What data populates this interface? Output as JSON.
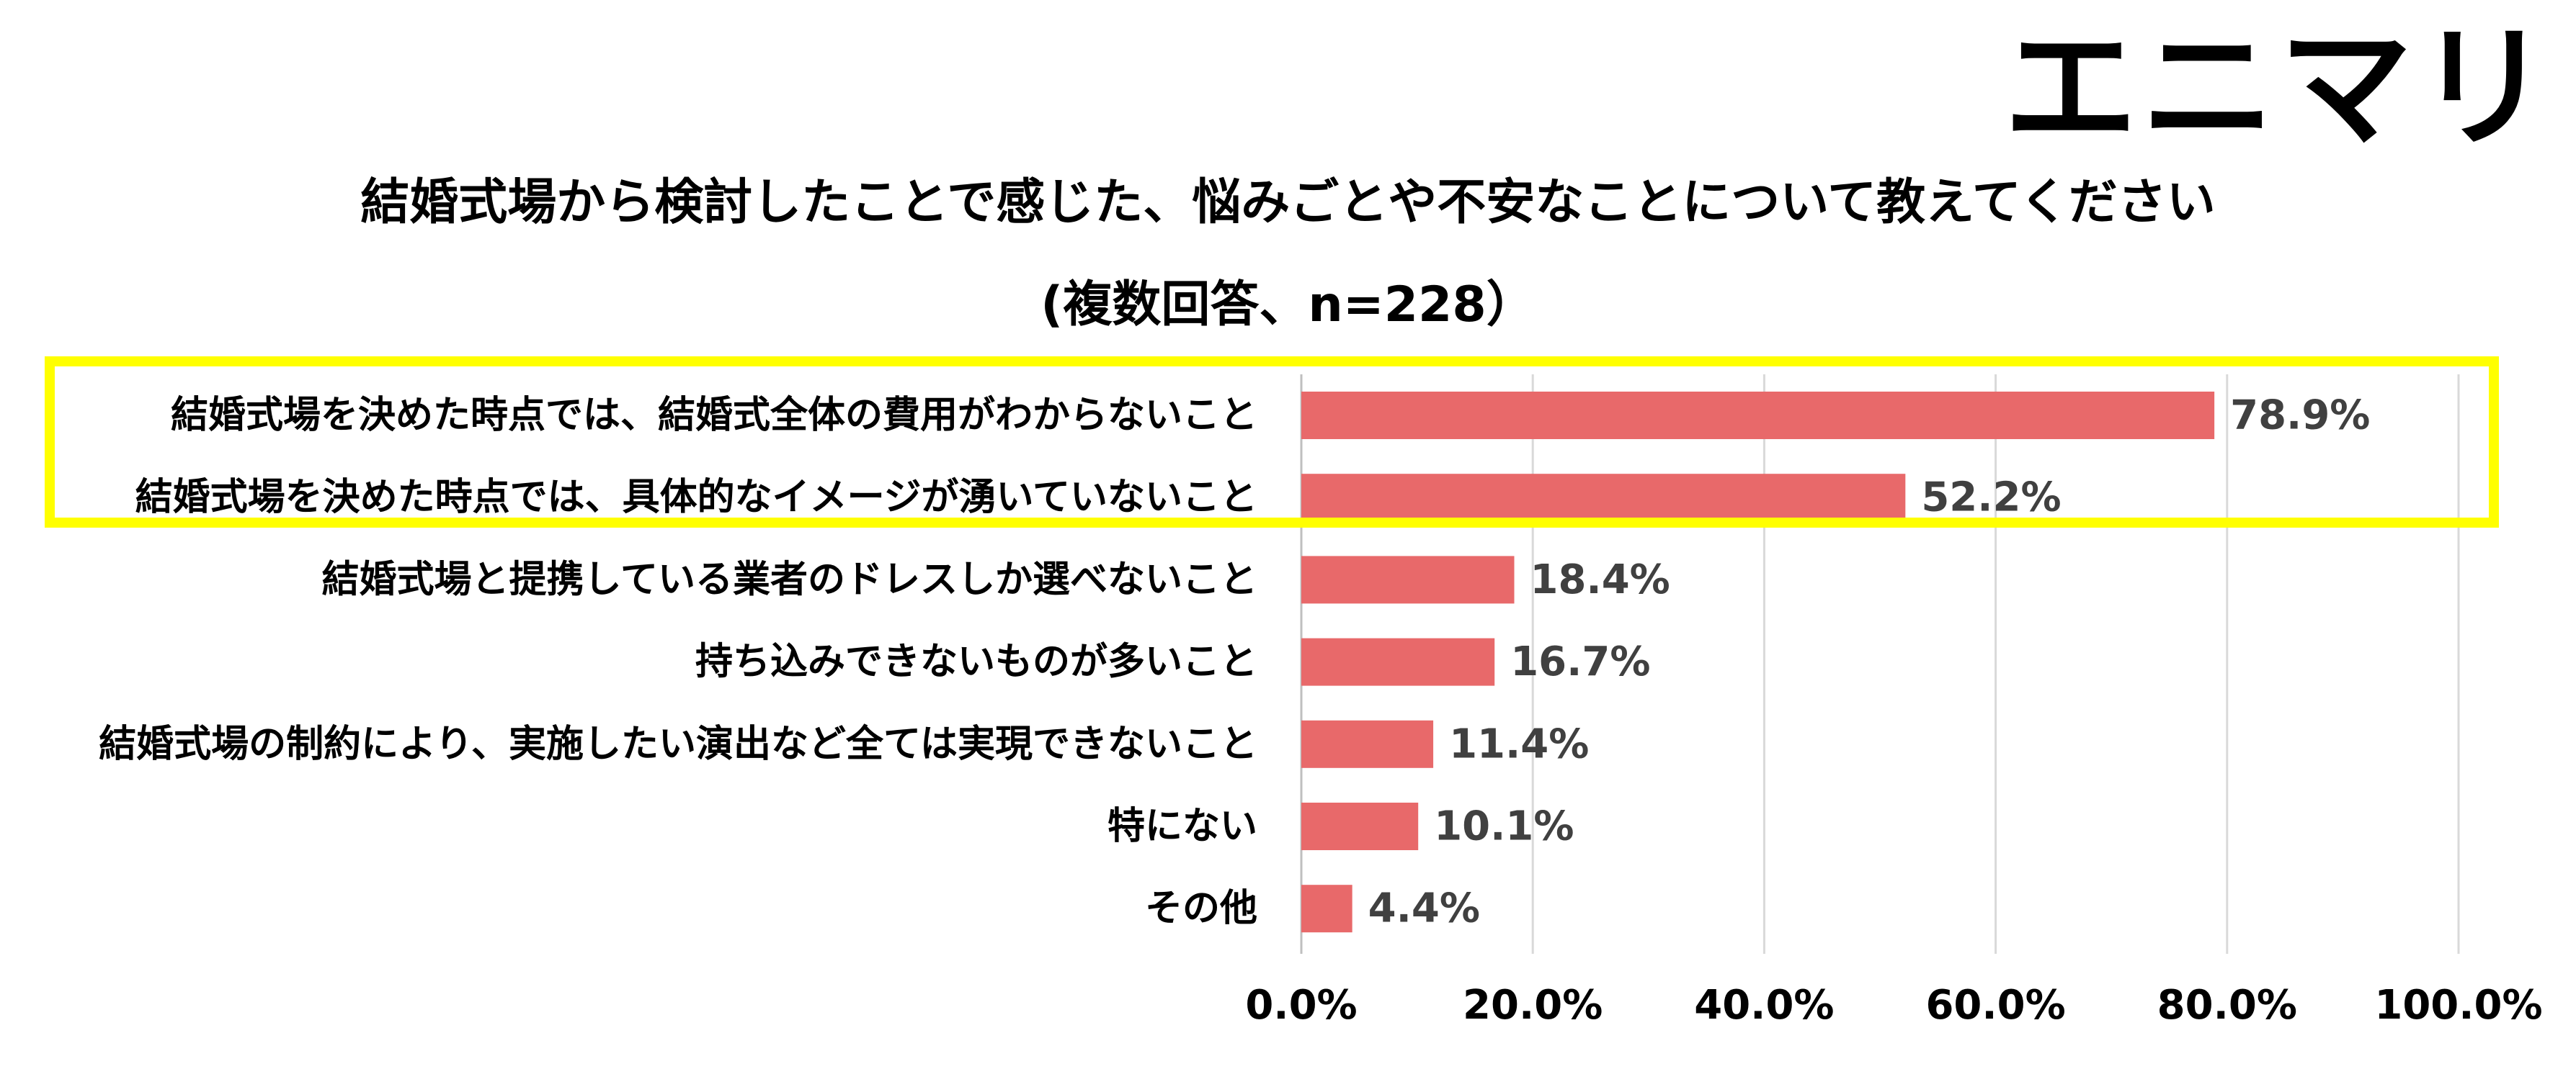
{
  "logo": "エニマリ",
  "chart_data": {
    "type": "bar",
    "orientation": "horizontal",
    "title": "結婚式場から検討したことで感じた、悩みごとや不安なことについて教えてください",
    "subtitle": "(複数回答、n=228）",
    "categories": [
      "結婚式場を決めた時点では、結婚式全体の費用がわからないこと",
      "結婚式場を決めた時点では、具体的なイメージが湧いていないこと",
      "結婚式場と提携している業者のドレスしか選べないこと",
      "持ち込みできないものが多いこと",
      "結婚式場の制約により、実施したい演出など全ては実現できないこと",
      "特にない",
      "その他"
    ],
    "values": [
      78.9,
      52.2,
      18.4,
      16.7,
      11.4,
      10.1,
      4.4
    ],
    "value_labels": [
      "78.9%",
      "52.2%",
      "18.4%",
      "16.7%",
      "11.4%",
      "10.1%",
      "4.4%"
    ],
    "xlim": [
      0,
      100
    ],
    "x_ticks": [
      0,
      20,
      40,
      60,
      80,
      100
    ],
    "x_tick_labels": [
      "0.0%",
      "20.0%",
      "40.0%",
      "60.0%",
      "80.0%",
      "100.0%"
    ],
    "grid": true,
    "legend": "none",
    "bar_color": "#e8696a",
    "highlight_color": "#ffff00",
    "highlighted_categories": [
      0,
      1
    ]
  }
}
